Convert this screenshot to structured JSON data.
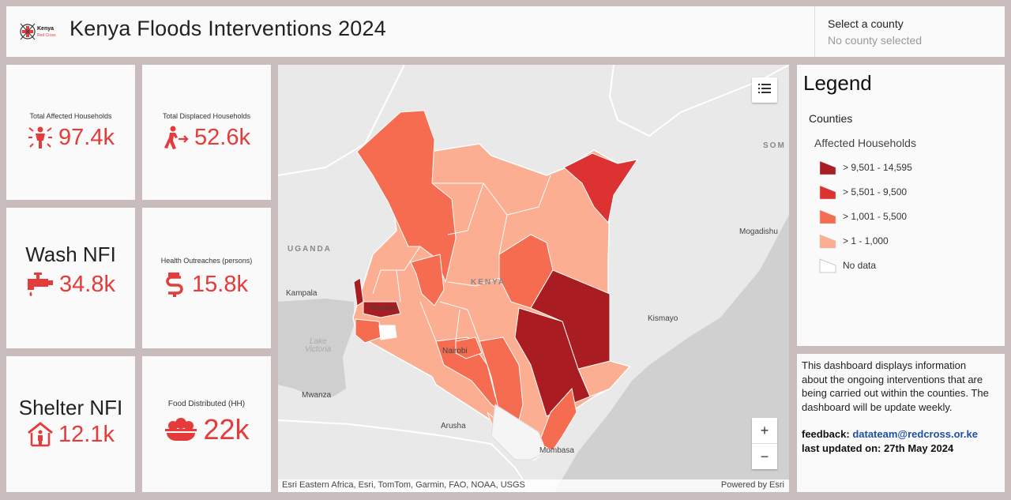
{
  "header": {
    "logo_text": [
      "Kenya",
      "Red Cross"
    ],
    "title": "Kenya Floods Interventions 2024",
    "county_selector": {
      "label": "Select a county",
      "value": "No county selected"
    }
  },
  "stats": {
    "total_affected": {
      "title": "Total Affected Households",
      "value": "97.4k",
      "icon": "affected-person-icon"
    },
    "total_displaced": {
      "title": "Total Displaced Households",
      "value": "52.6k",
      "icon": "displaced-person-icon"
    },
    "wash_nfi": {
      "title": "Wash NFI",
      "value": "34.8k",
      "icon": "water-tap-icon"
    },
    "health_outreach": {
      "title": "Health Outreaches (persons)",
      "value": "15.8k",
      "icon": "health-outreach-icon"
    },
    "shelter_nfi": {
      "title": "Shelter NFI",
      "value": "12.1k",
      "icon": "shelter-icon"
    },
    "food_distributed": {
      "title": "Food Distributed (HH)",
      "value": "22k",
      "icon": "food-bowl-icon"
    }
  },
  "map": {
    "labels": {
      "kenya": "KENYA",
      "uganda": "UGANDA",
      "somalia": "SOM",
      "kampala": "Kampala",
      "kisumu": "Kisumu",
      "lake": "Lake",
      "victoria": "Victoria",
      "nairobi": "Nairobi",
      "mwanza": "Mwanza",
      "arusha": "Arusha",
      "mombasa": "Mombasa",
      "mogadishu": "Mogadishu",
      "kismayo": "Kismayo"
    },
    "attribution": "Esri Eastern Africa, Esri, TomTom, Garmin, FAO, NOAA, USGS",
    "powered_by": "Powered by Esri",
    "zoom_in": "+",
    "zoom_out": "−"
  },
  "legend": {
    "title": "Legend",
    "layer": "Counties",
    "field": "Affected Households",
    "classes": [
      {
        "label": "> 9,501 - 14,595",
        "color": "#a81c22"
      },
      {
        "label": "> 5,501 - 9,500",
        "color": "#dc3232"
      },
      {
        "label": "> 1,001 - 5,500",
        "color": "#f56c50"
      },
      {
        "label": "> 1 - 1,000",
        "color": "#fbae92"
      },
      {
        "label": "No data",
        "color": "#ffffff"
      }
    ]
  },
  "info": {
    "description": "This dashboard displays information about the ongoing interventions that are being carried out within the counties. The dashboard will be update weekly.",
    "feedback_label": "feedback:",
    "feedback_email": "datateam@redcross.or.ke",
    "updated_label": "last updated on:",
    "updated_date": "27th May 2024"
  },
  "colors": {
    "accent": "#e43b3b",
    "background": "#c9bcbc",
    "panel": "#fafafa"
  }
}
